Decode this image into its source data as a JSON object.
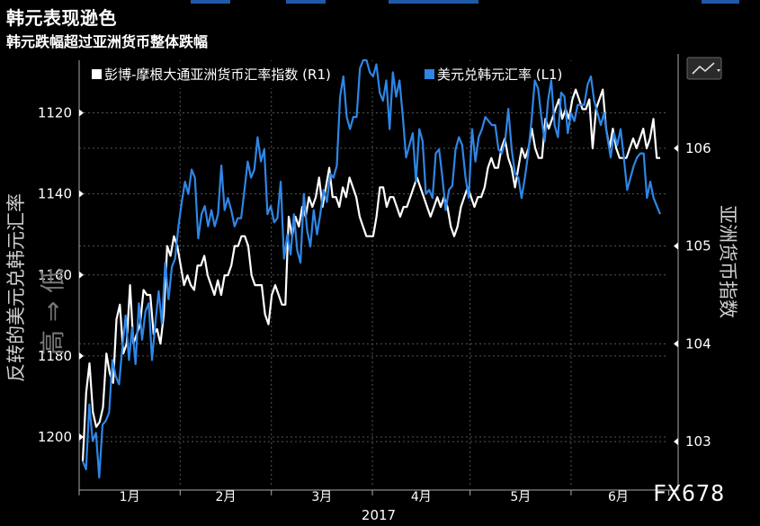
{
  "header": {
    "title": "韩元表现逊色",
    "subtitle": "韩元跌幅超过亚洲货币整体跌幅"
  },
  "legend": {
    "white_series": "彭博-摩根大通亚洲货币汇率指数 (R1)",
    "blue_series": "美元兑韩元汇率 (L1)"
  },
  "axes": {
    "left_label_a": "反转的美元兑韩元汇率",
    "left_label_b": "高 ⇒ 低",
    "right_label": "亚洲货币指数",
    "year_label": "2017",
    "left_ticks": [
      "1120",
      "1140",
      "1160",
      "1180",
      "1200"
    ],
    "right_ticks": [
      "106",
      "105",
      "104",
      "103"
    ],
    "month_ticks": [
      "1月",
      "2月",
      "3月",
      "4月",
      "5月",
      "6月"
    ]
  },
  "watermark": "FX678",
  "colors": {
    "background": "#000000",
    "blue_series": "#2f86e6",
    "white_series": "#ffffff",
    "grid": "#555555"
  },
  "chart_icon": "line-chart-icon",
  "chart_data": {
    "type": "line",
    "x_range": [
      "2017-01-01",
      "2017-06-30"
    ],
    "left_axis": {
      "label": "反转的美元兑韩元汇率",
      "inverted": true,
      "ylim": [
        1212,
        1107
      ]
    },
    "right_axis": {
      "label": "亚洲货币指数",
      "ylim": [
        102.55,
        106.9
      ]
    },
    "series": [
      {
        "name": "美元兑韩元汇率 (L1)",
        "axis": "left",
        "values": [
          1206,
          1208,
          1192,
          1201,
          1199,
          1210,
          1197,
          1196,
          1194,
          1181,
          1185,
          1187,
          1178,
          1170,
          1181,
          1173,
          1182,
          1167,
          1176,
          1169,
          1167,
          1181,
          1172,
          1164,
          1172,
          1157,
          1166,
          1158,
          1156,
          1148,
          1142,
          1137,
          1140,
          1134,
          1136,
          1151,
          1145,
          1143,
          1148,
          1144,
          1148,
          1145,
          1133,
          1144,
          1141,
          1144,
          1148,
          1146,
          1146,
          1139,
          1132,
          1136,
          1134,
          1126,
          1132,
          1129,
          1145,
          1143,
          1147,
          1146,
          1137,
          1156,
          1150,
          1155,
          1145,
          1154,
          1157,
          1140,
          1149,
          1153,
          1144,
          1150,
          1145,
          1139,
          1142,
          1135,
          1136,
          1133,
          1116,
          1111,
          1121,
          1124,
          1121,
          1121,
          1109,
          1107,
          1107,
          1110,
          1111,
          1108,
          1115,
          1117,
          1112,
          1124,
          1110,
          1116,
          1112,
          1121,
          1131,
          1128,
          1125,
          1137,
          1124,
          1127,
          1140,
          1139,
          1141,
          1130,
          1129,
          1136,
          1144,
          1139,
          1138,
          1129,
          1126,
          1128,
          1136,
          1141,
          1124,
          1132,
          1126,
          1124,
          1121,
          1122,
          1123,
          1123,
          1129,
          1130,
          1127,
          1119,
          1129,
          1135,
          1136,
          1141,
          1136,
          1130,
          1122,
          1112,
          1114,
          1121,
          1127,
          1117,
          1112,
          1123,
          1126,
          1115,
          1116,
          1125,
          1120,
          1122,
          1118,
          1118,
          1118,
          1113,
          1111,
          1117,
          1120,
          1123,
          1120,
          1126,
          1131,
          1125,
          1128,
          1124,
          1131,
          1139,
          1136,
          1133,
          1131,
          1130,
          1130,
          1141,
          1137,
          1141,
          1143,
          1145
        ]
      },
      {
        "name": "彭博-摩根大通亚洲货币汇率指数 (R1)",
        "axis": "right",
        "values": [
          102.8,
          103.5,
          103.8,
          103.3,
          103.15,
          103.2,
          103.35,
          103.9,
          103.7,
          103.6,
          104.25,
          104.4,
          103.9,
          104.0,
          104.6,
          104.0,
          104.1,
          104.2,
          104.55,
          104.5,
          104.5,
          104.1,
          104.15,
          104.0,
          104.3,
          105.0,
          104.9,
          105.1,
          105.0,
          104.8,
          104.6,
          104.7,
          104.6,
          104.55,
          104.8,
          104.8,
          104.9,
          104.7,
          104.6,
          104.5,
          104.65,
          104.5,
          104.7,
          104.7,
          104.8,
          105.0,
          105.0,
          105.1,
          105.1,
          105.0,
          104.7,
          104.6,
          104.6,
          104.6,
          104.3,
          104.2,
          104.5,
          104.6,
          104.5,
          104.4,
          104.4,
          105.3,
          105.1,
          105.3,
          105.2,
          105.4,
          105.3,
          105.5,
          105.4,
          105.5,
          105.7,
          105.4,
          105.6,
          105.8,
          105.5,
          105.5,
          105.4,
          105.6,
          105.5,
          105.7,
          105.6,
          105.5,
          105.3,
          105.2,
          105.1,
          105.1,
          105.1,
          105.3,
          105.6,
          105.6,
          105.4,
          105.5,
          105.5,
          105.4,
          105.3,
          105.4,
          105.4,
          105.5,
          105.6,
          105.7,
          105.6,
          105.5,
          105.4,
          105.3,
          105.4,
          105.5,
          105.4,
          105.5,
          105.4,
          105.2,
          105.1,
          105.2,
          105.4,
          105.5,
          105.6,
          105.5,
          105.4,
          105.5,
          105.5,
          105.6,
          105.8,
          105.9,
          105.8,
          105.8,
          106.0,
          106.1,
          105.9,
          105.8,
          105.6,
          105.8,
          106.0,
          105.9,
          106.0,
          106.2,
          106.0,
          105.9,
          105.9,
          106.3,
          106.2,
          106.3,
          106.4,
          106.5,
          106.3,
          106.4,
          106.3,
          106.5,
          106.6,
          106.5,
          106.4,
          106.4,
          106.5,
          106.0,
          106.4,
          106.5,
          106.6,
          106.2,
          106.0,
          106.2,
          106.0,
          105.9,
          105.9,
          105.9,
          106.0,
          106.1,
          106.0,
          106.1,
          106.2,
          106.0,
          106.1,
          106.3,
          105.9,
          105.9
        ]
      }
    ],
    "x_tick_labels": [
      "1月",
      "2月",
      "3月",
      "4月",
      "5月",
      "6月"
    ],
    "xlabel": "2017",
    "grid": true,
    "legend_position": "top"
  }
}
